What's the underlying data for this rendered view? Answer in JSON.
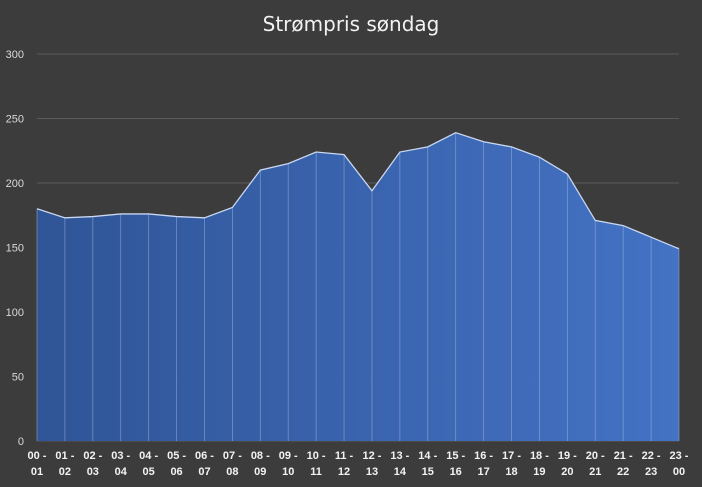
{
  "chart_data": {
    "type": "area",
    "title": "Strømpris søndag",
    "xlabel": "",
    "ylabel": "",
    "ylim": [
      0,
      300
    ],
    "yticks": [
      0,
      50,
      100,
      150,
      200,
      250,
      300
    ],
    "grid": true,
    "legend": "none",
    "colors": {
      "background": "#3c3c3c",
      "gridline": "#5a5a5a",
      "fill_start": "#2f5597",
      "fill_end": "#4472c4",
      "line": "#c9d7f0",
      "divider": "#a9bde3"
    },
    "categories": [
      "00 - 01",
      "01 - 02",
      "02 - 03",
      "03 - 04",
      "04 - 05",
      "05 - 06",
      "06 - 07",
      "07 - 08",
      "08 - 09",
      "09 - 10",
      "10 - 11",
      "11 - 12",
      "12 - 13",
      "13 - 14",
      "14 - 15",
      "15 - 16",
      "16 - 17",
      "17 - 18",
      "18 - 19",
      "19 - 20",
      "20 - 21",
      "21 - 22",
      "22 - 23",
      "23 - 00"
    ],
    "values": [
      180,
      173,
      174,
      176,
      176,
      174,
      173,
      181,
      210,
      215,
      224,
      222,
      194,
      224,
      228,
      239,
      232,
      228,
      220,
      207,
      171,
      167,
      158,
      149
    ]
  }
}
